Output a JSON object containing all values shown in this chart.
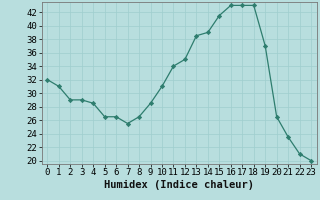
{
  "x": [
    0,
    1,
    2,
    3,
    4,
    5,
    6,
    7,
    8,
    9,
    10,
    11,
    12,
    13,
    14,
    15,
    16,
    17,
    18,
    19,
    20,
    21,
    22,
    23
  ],
  "y": [
    32,
    31,
    29,
    29,
    28.5,
    26.5,
    26.5,
    25.5,
    26.5,
    28.5,
    31,
    34,
    35,
    38.5,
    39,
    41.5,
    43,
    43,
    43,
    37,
    26.5,
    23.5,
    21,
    20
  ],
  "line_color": "#2e7d6e",
  "marker_color": "#2e7d6e",
  "bg_color": "#b8dede",
  "grid_color": "#9fcece",
  "xlabel": "Humidex (Indice chaleur)",
  "ylabel_ticks": [
    20,
    22,
    24,
    26,
    28,
    30,
    32,
    34,
    36,
    38,
    40,
    42
  ],
  "ylim": [
    19.5,
    43.5
  ],
  "xlim": [
    -0.5,
    23.5
  ],
  "xlabel_fontsize": 7.5,
  "tick_fontsize": 6.5
}
